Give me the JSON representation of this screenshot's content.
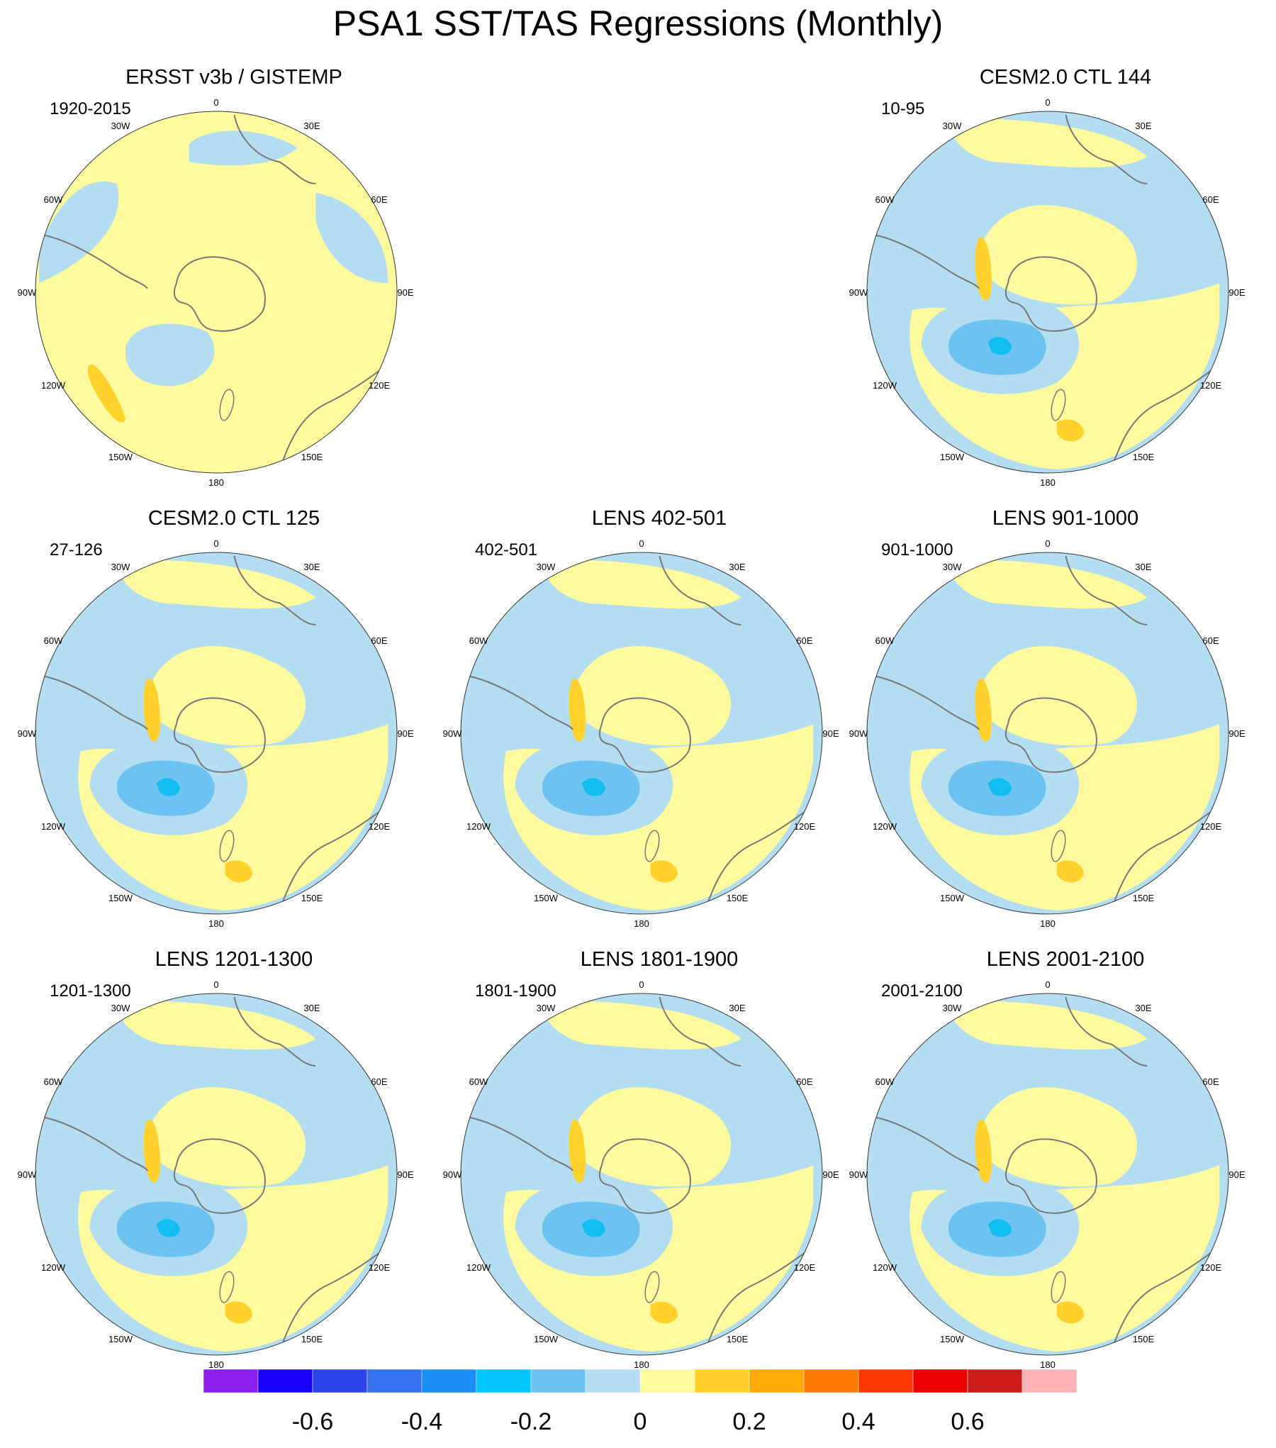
{
  "title": "PSA1 SST/TAS Regressions (Monthly)",
  "lon_labels": [
    "0",
    "30E",
    "60E",
    "90E",
    "120E",
    "150E",
    "180",
    "150W",
    "120W",
    "90W",
    "60W",
    "30W"
  ],
  "colors": {
    "land_coast": "#777777",
    "ocean_neutral_neg": "#b3def2",
    "ocean_neutral_pos": "#fffa9e",
    "anomaly_pos_1": "#ffd12a",
    "anomaly_neg_1": "#6cc3f1",
    "anomaly_neg_2": "#12bdf2"
  },
  "panels": [
    {
      "title": "ERSST v3b / GISTEMP",
      "period": "1920-2015",
      "pattern": "obs"
    },
    {
      "title": "CESM2.0 CTL 144",
      "period": "10-95",
      "pattern": "model"
    },
    {
      "title": "CESM2.0 CTL 125",
      "period": "27-126",
      "pattern": "model"
    },
    {
      "title": "LENS 402-501",
      "period": "402-501",
      "pattern": "model"
    },
    {
      "title": "LENS 901-1000",
      "period": "901-1000",
      "pattern": "model"
    },
    {
      "title": "LENS 1201-1300",
      "period": "1201-1300",
      "pattern": "model"
    },
    {
      "title": "LENS 1801-1900",
      "period": "1801-1900",
      "pattern": "model"
    },
    {
      "title": "LENS 2001-2100",
      "period": "2001-2100",
      "pattern": "model"
    }
  ],
  "colorbar": {
    "colors": [
      "#8a1ff0",
      "#1a00ff",
      "#2a42e8",
      "#3470ec",
      "#1b8ef6",
      "#00c5fa",
      "#6cc3f1",
      "#b3def2",
      "#fffa9e",
      "#ffd12a",
      "#fdab05",
      "#fd7b06",
      "#ff3700",
      "#ea0000",
      "#cd1a1a",
      "#fdb3b3"
    ],
    "tick_labels": [
      "-0.6",
      "-0.4",
      "-0.2",
      "0",
      "0.2",
      "0.4",
      "0.6"
    ]
  }
}
